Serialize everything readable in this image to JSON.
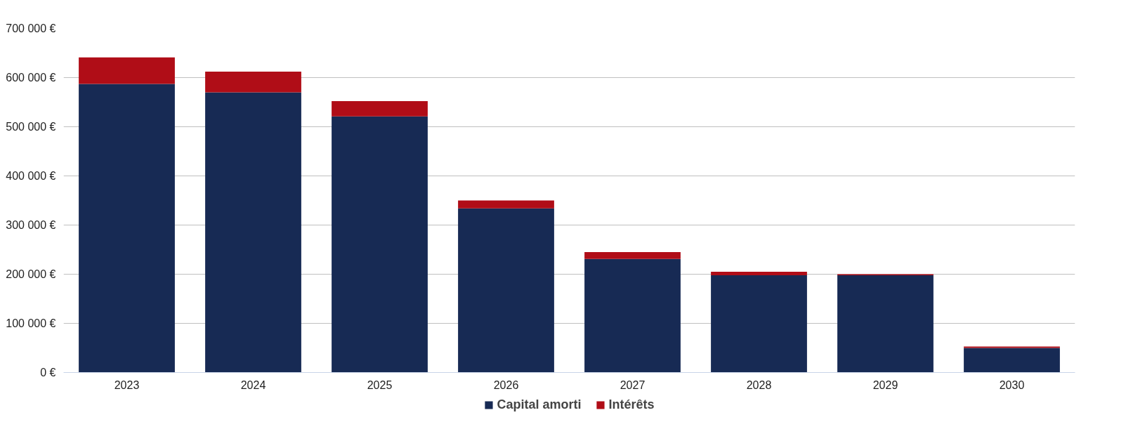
{
  "chart_data": {
    "type": "bar",
    "stacked": true,
    "categories": [
      "2023",
      "2024",
      "2025",
      "2026",
      "2027",
      "2028",
      "2029",
      "2030"
    ],
    "series": [
      {
        "name": "Capital amorti",
        "color": "#172a54",
        "values": [
          587000,
          570000,
          521000,
          334000,
          231000,
          198000,
          198000,
          50000
        ]
      },
      {
        "name": "Intérêts",
        "color": "#b00d17",
        "values": [
          54000,
          42000,
          31000,
          16000,
          14000,
          7000,
          2000,
          3000
        ]
      }
    ],
    "ylim": [
      0,
      700000
    ],
    "yticks": [
      {
        "value": 0,
        "label": "0 €"
      },
      {
        "value": 100000,
        "label": "100 000 €"
      },
      {
        "value": 200000,
        "label": "200 000 €"
      },
      {
        "value": 300000,
        "label": "300 000 €"
      },
      {
        "value": 400000,
        "label": "400 000 €"
      },
      {
        "value": 500000,
        "label": "500 000 €"
      },
      {
        "value": 600000,
        "label": "600 000 €"
      },
      {
        "value": 700000,
        "label": "700 000 €"
      }
    ],
    "grid": "y",
    "legend": "bottom"
  }
}
